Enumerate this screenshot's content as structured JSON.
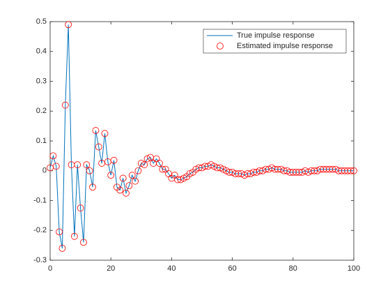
{
  "chart_data": {
    "type": "line",
    "x": [
      0,
      1,
      2,
      3,
      4,
      5,
      6,
      7,
      8,
      9,
      10,
      11,
      12,
      13,
      14,
      15,
      16,
      17,
      18,
      19,
      20,
      21,
      22,
      23,
      24,
      25,
      26,
      27,
      28,
      29,
      30,
      31,
      32,
      33,
      34,
      35,
      36,
      37,
      38,
      39,
      40,
      41,
      42,
      43,
      44,
      45,
      46,
      47,
      48,
      49,
      50,
      51,
      52,
      53,
      54,
      55,
      56,
      57,
      58,
      59,
      60,
      61,
      62,
      63,
      64,
      65,
      66,
      67,
      68,
      69,
      70,
      71,
      72,
      73,
      74,
      75,
      76,
      77,
      78,
      79,
      80,
      81,
      82,
      83,
      84,
      85,
      86,
      87,
      88,
      89,
      90,
      91,
      92,
      93,
      94,
      95,
      96,
      97,
      98,
      99,
      100
    ],
    "series": [
      {
        "name": "True impulse response",
        "style": "line",
        "color": "#0072bd",
        "values": [
          0.01,
          0.05,
          0.015,
          -0.205,
          -0.26,
          0.22,
          0.49,
          0.02,
          -0.22,
          0.02,
          -0.125,
          -0.24,
          0.02,
          0.0,
          -0.055,
          0.135,
          0.08,
          0.025,
          0.125,
          0.03,
          -0.015,
          0.035,
          -0.055,
          -0.065,
          -0.025,
          -0.075,
          -0.05,
          -0.015,
          -0.035,
          0.0,
          0.025,
          0.02,
          0.04,
          0.045,
          0.025,
          0.04,
          0.025,
          0.005,
          0.005,
          -0.01,
          -0.025,
          -0.015,
          -0.03,
          -0.03,
          -0.025,
          -0.02,
          -0.01,
          -0.005,
          0.005,
          0.01,
          0.01,
          0.015,
          0.015,
          0.02,
          0.015,
          0.01,
          0.01,
          0.005,
          0.0,
          -0.005,
          -0.005,
          -0.01,
          -0.01,
          -0.01,
          -0.015,
          -0.01,
          -0.01,
          -0.005,
          -0.005,
          0.0,
          0.0,
          0.005,
          0.005,
          0.01,
          0.005,
          0.005,
          0.005,
          0.0,
          0.0,
          -0.005,
          -0.005,
          -0.005,
          -0.005,
          -0.005,
          0.0,
          -0.005,
          0.0,
          0.0,
          0.0,
          0.005,
          0.005,
          0.005,
          0.005,
          0.005,
          0.005,
          0.0,
          0.0,
          0.0,
          0.0,
          0.0,
          0.0
        ]
      },
      {
        "name": "Estimated impulse response",
        "style": "marker",
        "color": "#ff0000",
        "values": [
          0.01,
          0.05,
          0.015,
          -0.205,
          -0.26,
          0.22,
          0.49,
          0.02,
          -0.22,
          0.02,
          -0.125,
          -0.24,
          0.02,
          0.0,
          -0.055,
          0.135,
          0.08,
          0.025,
          0.125,
          0.03,
          -0.015,
          0.035,
          -0.055,
          -0.065,
          -0.025,
          -0.075,
          -0.05,
          -0.015,
          -0.035,
          0.0,
          0.025,
          0.02,
          0.04,
          0.045,
          0.025,
          0.04,
          0.025,
          0.005,
          0.005,
          -0.01,
          -0.025,
          -0.015,
          -0.03,
          -0.03,
          -0.025,
          -0.02,
          -0.01,
          -0.005,
          0.005,
          0.01,
          0.01,
          0.015,
          0.015,
          0.02,
          0.015,
          0.01,
          0.01,
          0.005,
          0.0,
          -0.005,
          -0.005,
          -0.01,
          -0.01,
          -0.01,
          -0.015,
          -0.01,
          -0.01,
          -0.005,
          -0.005,
          0.0,
          0.0,
          0.005,
          0.005,
          0.01,
          0.005,
          0.005,
          0.005,
          0.0,
          0.0,
          -0.005,
          -0.005,
          -0.005,
          -0.005,
          -0.005,
          0.0,
          -0.005,
          0.0,
          0.0,
          0.0,
          0.005,
          0.005,
          0.005,
          0.005,
          0.005,
          0.005,
          0.0,
          0.0,
          0.0,
          0.0,
          0.0,
          0.0
        ]
      }
    ],
    "xlim": [
      0,
      100
    ],
    "xticks": [
      0,
      20,
      40,
      60,
      80,
      100
    ],
    "ylim": [
      -0.3,
      0.5
    ],
    "yticks": [
      -0.3,
      -0.2,
      -0.1,
      0,
      0.1,
      0.2,
      0.3,
      0.4,
      0.5
    ],
    "grid": false,
    "legend": "northeast"
  }
}
